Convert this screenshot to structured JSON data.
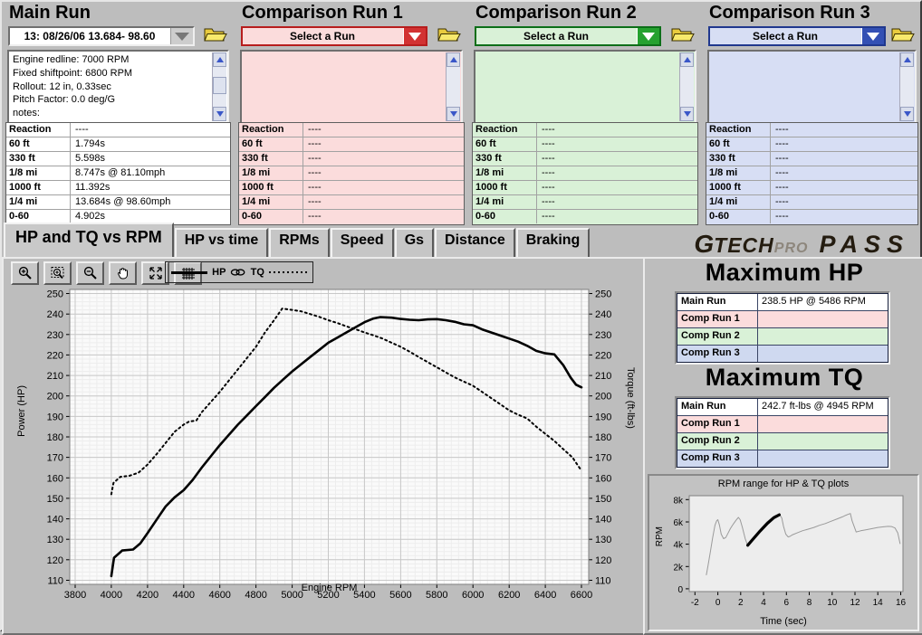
{
  "panels": [
    {
      "title": "Main Run",
      "combo": "13:  08/26/06 13.684- 98.60",
      "accent": "#9a9a9a",
      "fill": "#ffffff",
      "info_lines": [
        "Engine redline: 7000 RPM",
        "Fixed shiftpoint: 6800 RPM",
        "Rollout: 12 in, 0.33sec",
        "Pitch Factor: 0.0 deg/G",
        "notes:"
      ],
      "rows": [
        [
          "Reaction",
          "----"
        ],
        [
          "60 ft",
          "1.794s"
        ],
        [
          "330 ft",
          "5.598s"
        ],
        [
          "1/8 mi",
          "8.747s @ 81.10mph"
        ],
        [
          "1000 ft",
          "11.392s"
        ],
        [
          "1/4 mi",
          "13.684s @ 98.60mph"
        ],
        [
          "0-60",
          "4.902s"
        ]
      ]
    },
    {
      "title": "Comparison Run 1",
      "combo": "Select a Run",
      "accent": "#d23232",
      "fill": "#fbdcdc",
      "info_lines": [],
      "rows": [
        [
          "Reaction",
          "----"
        ],
        [
          "60 ft",
          "----"
        ],
        [
          "330 ft",
          "----"
        ],
        [
          "1/8 mi",
          "----"
        ],
        [
          "1000 ft",
          "----"
        ],
        [
          "1/4 mi",
          "----"
        ],
        [
          "0-60",
          "----"
        ]
      ]
    },
    {
      "title": "Comparison Run 2",
      "combo": "Select a Run",
      "accent": "#25a12f",
      "fill": "#d9f1d7",
      "info_lines": [],
      "rows": [
        [
          "Reaction",
          "----"
        ],
        [
          "60 ft",
          "----"
        ],
        [
          "330 ft",
          "----"
        ],
        [
          "1/8 mi",
          "----"
        ],
        [
          "1000 ft",
          "----"
        ],
        [
          "1/4 mi",
          "----"
        ],
        [
          "0-60",
          "----"
        ]
      ]
    },
    {
      "title": "Comparison Run 3",
      "combo": "Select a Run",
      "accent": "#3350b4",
      "fill": "#d7def4",
      "info_lines": [],
      "rows": [
        [
          "Reaction",
          "----"
        ],
        [
          "60 ft",
          "----"
        ],
        [
          "330 ft",
          "----"
        ],
        [
          "1/8 mi",
          "----"
        ],
        [
          "1000 ft",
          "----"
        ],
        [
          "1/4 mi",
          "----"
        ],
        [
          "0-60",
          "----"
        ]
      ]
    }
  ],
  "tabs": [
    {
      "label": "HP and TQ vs RPM",
      "active": true
    },
    {
      "label": "HP vs time",
      "active": false
    },
    {
      "label": "RPMs",
      "active": false
    },
    {
      "label": "Speed",
      "active": false
    },
    {
      "label": "Gs",
      "active": false
    },
    {
      "label": "Distance",
      "active": false
    },
    {
      "label": "Braking",
      "active": false
    }
  ],
  "logo": {
    "g": "G",
    "tech": "TECH",
    "pro": "PRO",
    "product": "PASS"
  },
  "toolbar": {
    "buttons": [
      "zoom-in",
      "zoom-select",
      "zoom-out",
      "pan",
      "fit-view",
      "grid"
    ],
    "legend": {
      "left_label": "HP",
      "right_label": "TQ"
    }
  },
  "stats": {
    "hp": {
      "title": "Maximum HP",
      "rows": [
        {
          "label": "Main Run",
          "value": "238.5 HP @ 5486 RPM",
          "color": "#ffffff"
        },
        {
          "label": "Comp Run 1",
          "value": "",
          "color": "#fbdcdc"
        },
        {
          "label": "Comp Run 2",
          "value": "",
          "color": "#d9f1d7"
        },
        {
          "label": "Comp Run 3",
          "value": "",
          "color": "#cfd9f0"
        }
      ]
    },
    "tq": {
      "title": "Maximum TQ",
      "rows": [
        {
          "label": "Main Run",
          "value": "242.7 ft-lbs @ 4945 RPM",
          "color": "#ffffff"
        },
        {
          "label": "Comp Run 1",
          "value": "",
          "color": "#fbdcdc"
        },
        {
          "label": "Comp Run 2",
          "value": "",
          "color": "#d9f1d7"
        },
        {
          "label": "Comp Run 3",
          "value": "",
          "color": "#cfd9f0"
        }
      ]
    }
  },
  "chart_data": [
    {
      "type": "line",
      "xlabel": "Engine RPM",
      "ylabel_left": "Power (HP)",
      "ylabel_right": "Torque (ft-lbs)",
      "xlim": [
        3770,
        6640
      ],
      "ylim": [
        108,
        252
      ],
      "xticks": [
        3800,
        4000,
        4200,
        4400,
        4600,
        4800,
        5000,
        5200,
        5400,
        5600,
        5800,
        6000,
        6200,
        6400,
        6600
      ],
      "yticks": [
        110,
        120,
        130,
        140,
        150,
        160,
        170,
        180,
        190,
        200,
        210,
        220,
        230,
        240,
        250
      ],
      "grid": true,
      "minor_step": [
        40,
        2
      ],
      "plot_bg": "#fafafa",
      "series": [
        {
          "name": "HP",
          "line": "solid",
          "color": "#000000",
          "width": 2.6,
          "x": [
            4000,
            4015,
            4060,
            4120,
            4160,
            4200,
            4250,
            4300,
            4350,
            4400,
            4450,
            4500,
            4550,
            4600,
            4650,
            4700,
            4750,
            4800,
            4850,
            4900,
            4950,
            5000,
            5050,
            5100,
            5150,
            5200,
            5250,
            5300,
            5350,
            5400,
            5450,
            5486,
            5550,
            5600,
            5650,
            5700,
            5750,
            5800,
            5850,
            5900,
            5950,
            6000,
            6050,
            6100,
            6150,
            6200,
            6250,
            6300,
            6350,
            6400,
            6450,
            6500,
            6540,
            6570,
            6600
          ],
          "y": [
            112,
            121,
            124.5,
            125,
            128,
            133,
            139.5,
            146,
            150.5,
            154,
            159,
            165,
            170.5,
            176,
            181,
            186,
            190.5,
            195,
            199.5,
            204,
            208,
            212,
            215.5,
            219,
            222.5,
            226,
            228.5,
            231,
            233.5,
            236,
            237.8,
            238.5,
            238.2,
            237.6,
            237.2,
            237.0,
            237.4,
            237.5,
            237,
            236.2,
            235,
            234.5,
            232.5,
            231,
            229.5,
            228,
            226.5,
            224.5,
            222,
            220.8,
            220.3,
            215,
            209,
            205.5,
            204.2
          ]
        },
        {
          "name": "TQ",
          "line": "dotted",
          "color": "#000000",
          "width": 2,
          "x": [
            4000,
            4012,
            4050,
            4100,
            4150,
            4200,
            4250,
            4300,
            4350,
            4400,
            4430,
            4470,
            4500,
            4550,
            4600,
            4650,
            4700,
            4750,
            4800,
            4850,
            4900,
            4945,
            5000,
            5050,
            5100,
            5150,
            5200,
            5250,
            5300,
            5350,
            5400,
            5450,
            5500,
            5550,
            5600,
            5650,
            5700,
            5750,
            5800,
            5850,
            5900,
            5950,
            6000,
            6050,
            6100,
            6150,
            6200,
            6250,
            6300,
            6350,
            6400,
            6450,
            6500,
            6550,
            6600
          ],
          "y": [
            152,
            157.5,
            160.5,
            161,
            162.5,
            166.5,
            171.5,
            177,
            182.5,
            186,
            187.5,
            188,
            192,
            197,
            202,
            207.5,
            213,
            218.5,
            224,
            231,
            237,
            242.7,
            242,
            241.3,
            240,
            238.6,
            237,
            235.6,
            234,
            232.6,
            231,
            229.6,
            228,
            226,
            224,
            221.6,
            219,
            216.5,
            214,
            211.5,
            209,
            207,
            205,
            202,
            199,
            196,
            193,
            190.8,
            189,
            185,
            181.5,
            178,
            174,
            170,
            163.5
          ]
        }
      ]
    },
    {
      "type": "line",
      "title": "RPM range for HP & TQ plots",
      "xlabel": "Time (sec)",
      "ylabel_left": "RPM",
      "xlim": [
        -2.5,
        16.2
      ],
      "ylim": [
        -250,
        8350
      ],
      "xticks": [
        -2,
        0,
        2,
        4,
        6,
        8,
        10,
        12,
        14,
        16
      ],
      "yticks": [
        {
          "v": 0,
          "label": "0"
        },
        {
          "v": 2000,
          "label": "2k"
        },
        {
          "v": 4000,
          "label": "4k"
        },
        {
          "v": 6000,
          "label": "6k"
        },
        {
          "v": 8000,
          "label": "8k"
        }
      ],
      "grid": false,
      "plot_bg": "#ededed",
      "series": [
        {
          "name": "rpm-trace",
          "color": "#9a9a9a",
          "width": 1,
          "x": [
            -1.0,
            -0.85,
            -0.65,
            -0.45,
            -0.25,
            -0.1,
            0,
            0.15,
            0.3,
            0.5,
            0.7,
            0.9,
            1.1,
            1.35,
            1.6,
            1.8,
            1.95,
            2.15,
            2.4,
            2.6,
            2.8,
            3.1,
            3.5,
            3.9,
            4.3,
            4.7,
            5.0,
            5.25,
            5.45,
            5.6,
            5.75,
            5.95,
            6.15,
            6.3,
            6.55,
            6.9,
            7.4,
            7.9,
            8.4,
            8.9,
            9.4,
            9.9,
            10.4,
            10.9,
            11.2,
            11.45,
            11.6,
            11.75,
            12.1,
            12.5,
            13.0,
            13.5,
            14.0,
            14.5,
            14.9,
            15.2,
            15.5,
            15.75,
            15.95
          ],
          "y": [
            1250,
            2100,
            3300,
            4600,
            5700,
            6100,
            6200,
            5700,
            4900,
            4500,
            4600,
            5000,
            5400,
            5800,
            6150,
            6400,
            6200,
            5500,
            4500,
            3900,
            4150,
            4500,
            5050,
            5550,
            6000,
            6350,
            6550,
            6650,
            6600,
            6350,
            5600,
            4900,
            4650,
            4700,
            4850,
            5000,
            5200,
            5350,
            5500,
            5700,
            5850,
            6050,
            6250,
            6450,
            6600,
            6700,
            6750,
            6100,
            5100,
            5200,
            5300,
            5400,
            5500,
            5560,
            5600,
            5580,
            5450,
            5000,
            4050
          ]
        },
        {
          "name": "run-range",
          "color": "#000000",
          "width": 3.2,
          "x": [
            2.62,
            3.1,
            3.7,
            4.3,
            4.9,
            5.38
          ],
          "y": [
            3900,
            4480,
            5180,
            5830,
            6380,
            6640
          ]
        }
      ]
    }
  ]
}
